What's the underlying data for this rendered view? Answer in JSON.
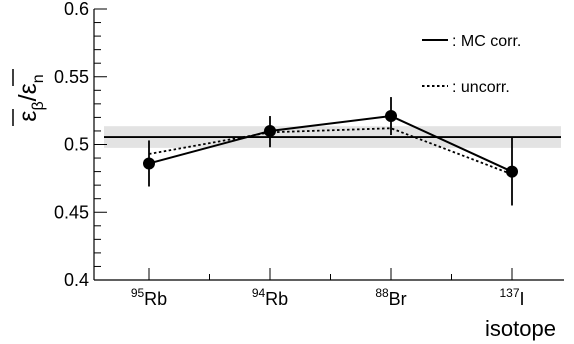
{
  "chart_data": {
    "type": "line",
    "xlabel": "isotope",
    "ylabel": {
      "main": "ε",
      "sub1": "β",
      "sep": "/",
      "main2": "ε",
      "sub2": "n"
    },
    "ylim": [
      0.4,
      0.6
    ],
    "yticks": [
      {
        "v": 0.4,
        "label": "0.4"
      },
      {
        "v": 0.45,
        "label": "0.45"
      },
      {
        "v": 0.5,
        "label": "0.5"
      },
      {
        "v": 0.55,
        "label": "0.55"
      },
      {
        "v": 0.6,
        "label": "0.6"
      }
    ],
    "categories": [
      {
        "sup": "95",
        "base": "Rb"
      },
      {
        "sup": "94",
        "base": "Rb"
      },
      {
        "sup": "88",
        "base": "Br"
      },
      {
        "sup": "137",
        "base": "I"
      }
    ],
    "mean_line": {
      "value": 0.5055,
      "band": [
        0.4975,
        0.5135
      ]
    },
    "series": [
      {
        "name": ": MC corr.",
        "style": "solid",
        "values": [
          0.486,
          0.51,
          0.521,
          0.48
        ],
        "err_low": [
          0.469,
          0.498,
          0.507,
          0.455
        ],
        "err_high": [
          0.503,
          0.521,
          0.535,
          0.505
        ]
      },
      {
        "name": ": uncorr.",
        "style": "dotted",
        "values": [
          0.493,
          0.509,
          0.512,
          0.478
        ]
      }
    ],
    "legend_position": "top-right",
    "grid": false,
    "colors": {
      "line": "#000000",
      "band": "#e3e3e3"
    }
  }
}
